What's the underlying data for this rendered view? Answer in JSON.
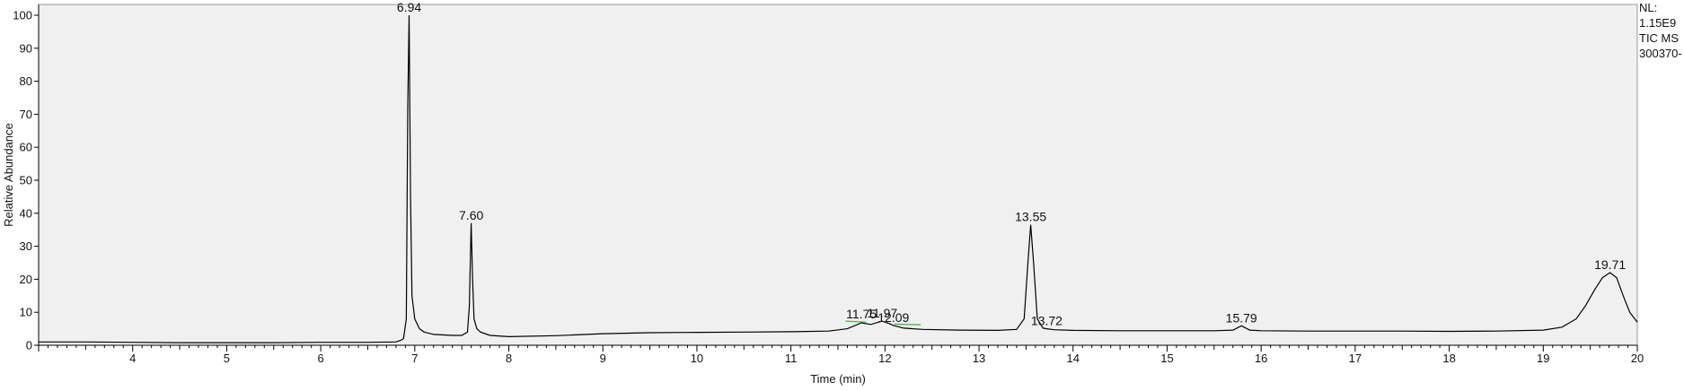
{
  "info": [
    "NL:",
    "1.15E9",
    "TIC  MS",
    "300370-"
  ],
  "chart_data": {
    "type": "line",
    "xlabel": "Time (min)",
    "ylabel": "Relative Abundance",
    "xlim": [
      3.0,
      20.0
    ],
    "ylim": [
      0,
      100
    ],
    "x_ticks": [
      4,
      5,
      6,
      7,
      8,
      9,
      10,
      11,
      12,
      13,
      14,
      15,
      16,
      17,
      18,
      19,
      20
    ],
    "y_ticks": [
      0,
      10,
      20,
      30,
      40,
      50,
      60,
      70,
      80,
      90,
      100
    ],
    "grid": false,
    "colors": {
      "plot_background": "#f0f0f0",
      "trace": "#000000",
      "integration_marks": "#4caf50"
    },
    "peaks": [
      {
        "rt": 6.94,
        "label": "6.94",
        "height": 100
      },
      {
        "rt": 7.6,
        "label": "7.60",
        "height": 37
      },
      {
        "rt": 11.75,
        "label": "11.75",
        "height": 7
      },
      {
        "rt": 11.97,
        "label": "11.97",
        "height": 7.3
      },
      {
        "rt": 12.09,
        "label": "12.09",
        "height": 6
      },
      {
        "rt": 13.55,
        "label": "13.55",
        "height": 36.5
      },
      {
        "rt": 13.72,
        "label": "13.72",
        "height": 5
      },
      {
        "rt": 15.79,
        "label": "15.79",
        "height": 5.9
      },
      {
        "rt": 19.71,
        "label": "19.71",
        "height": 22
      }
    ],
    "series": [
      {
        "values": [
          [
            3.0,
            1.0
          ],
          [
            3.5,
            1.0
          ],
          [
            4.0,
            0.9
          ],
          [
            4.5,
            0.8
          ],
          [
            5.0,
            0.8
          ],
          [
            5.5,
            0.8
          ],
          [
            6.0,
            0.9
          ],
          [
            6.5,
            0.9
          ],
          [
            6.8,
            1.0
          ],
          [
            6.85,
            1.5
          ],
          [
            6.88,
            2.0
          ],
          [
            6.91,
            8.0
          ],
          [
            6.925,
            72.0
          ],
          [
            6.94,
            100.0
          ],
          [
            6.955,
            45.0
          ],
          [
            6.97,
            15.0
          ],
          [
            7.0,
            8.0
          ],
          [
            7.05,
            5.0
          ],
          [
            7.1,
            4.0
          ],
          [
            7.2,
            3.3
          ],
          [
            7.4,
            3.0
          ],
          [
            7.5,
            3.0
          ],
          [
            7.56,
            4.0
          ],
          [
            7.58,
            12.0
          ],
          [
            7.6,
            37.0
          ],
          [
            7.615,
            20.0
          ],
          [
            7.63,
            8.0
          ],
          [
            7.66,
            5.0
          ],
          [
            7.7,
            4.0
          ],
          [
            7.8,
            3.0
          ],
          [
            8.0,
            2.6
          ],
          [
            8.5,
            2.9
          ],
          [
            9.0,
            3.5
          ],
          [
            9.5,
            3.8
          ],
          [
            10.0,
            3.9
          ],
          [
            10.5,
            4.0
          ],
          [
            11.0,
            4.1
          ],
          [
            11.4,
            4.3
          ],
          [
            11.6,
            5.0
          ],
          [
            11.75,
            6.8
          ],
          [
            11.85,
            6.3
          ],
          [
            11.97,
            7.3
          ],
          [
            12.05,
            6.5
          ],
          [
            12.09,
            6.0
          ],
          [
            12.2,
            5.2
          ],
          [
            12.4,
            4.8
          ],
          [
            12.8,
            4.6
          ],
          [
            13.2,
            4.5
          ],
          [
            13.4,
            4.8
          ],
          [
            13.48,
            8.0
          ],
          [
            13.52,
            25.0
          ],
          [
            13.55,
            36.5
          ],
          [
            13.58,
            25.0
          ],
          [
            13.62,
            8.0
          ],
          [
            13.68,
            5.2
          ],
          [
            13.72,
            5.0
          ],
          [
            13.8,
            4.7
          ],
          [
            14.0,
            4.5
          ],
          [
            14.5,
            4.4
          ],
          [
            15.0,
            4.4
          ],
          [
            15.5,
            4.4
          ],
          [
            15.7,
            4.6
          ],
          [
            15.79,
            5.9
          ],
          [
            15.88,
            4.6
          ],
          [
            16.0,
            4.4
          ],
          [
            16.5,
            4.3
          ],
          [
            17.0,
            4.3
          ],
          [
            17.5,
            4.3
          ],
          [
            18.0,
            4.2
          ],
          [
            18.5,
            4.3
          ],
          [
            19.0,
            4.6
          ],
          [
            19.2,
            5.5
          ],
          [
            19.35,
            8.0
          ],
          [
            19.45,
            12.0
          ],
          [
            19.55,
            17.0
          ],
          [
            19.63,
            20.5
          ],
          [
            19.71,
            22.0
          ],
          [
            19.78,
            20.5
          ],
          [
            19.85,
            15.0
          ],
          [
            19.92,
            10.0
          ],
          [
            20.0,
            7.0
          ]
        ]
      }
    ],
    "integration_marks": [
      [
        [
          11.58,
          7.3
        ],
        [
          11.8,
          7.0
        ]
      ],
      [
        [
          12.1,
          6.4
        ],
        [
          12.38,
          6.2
        ]
      ]
    ]
  }
}
